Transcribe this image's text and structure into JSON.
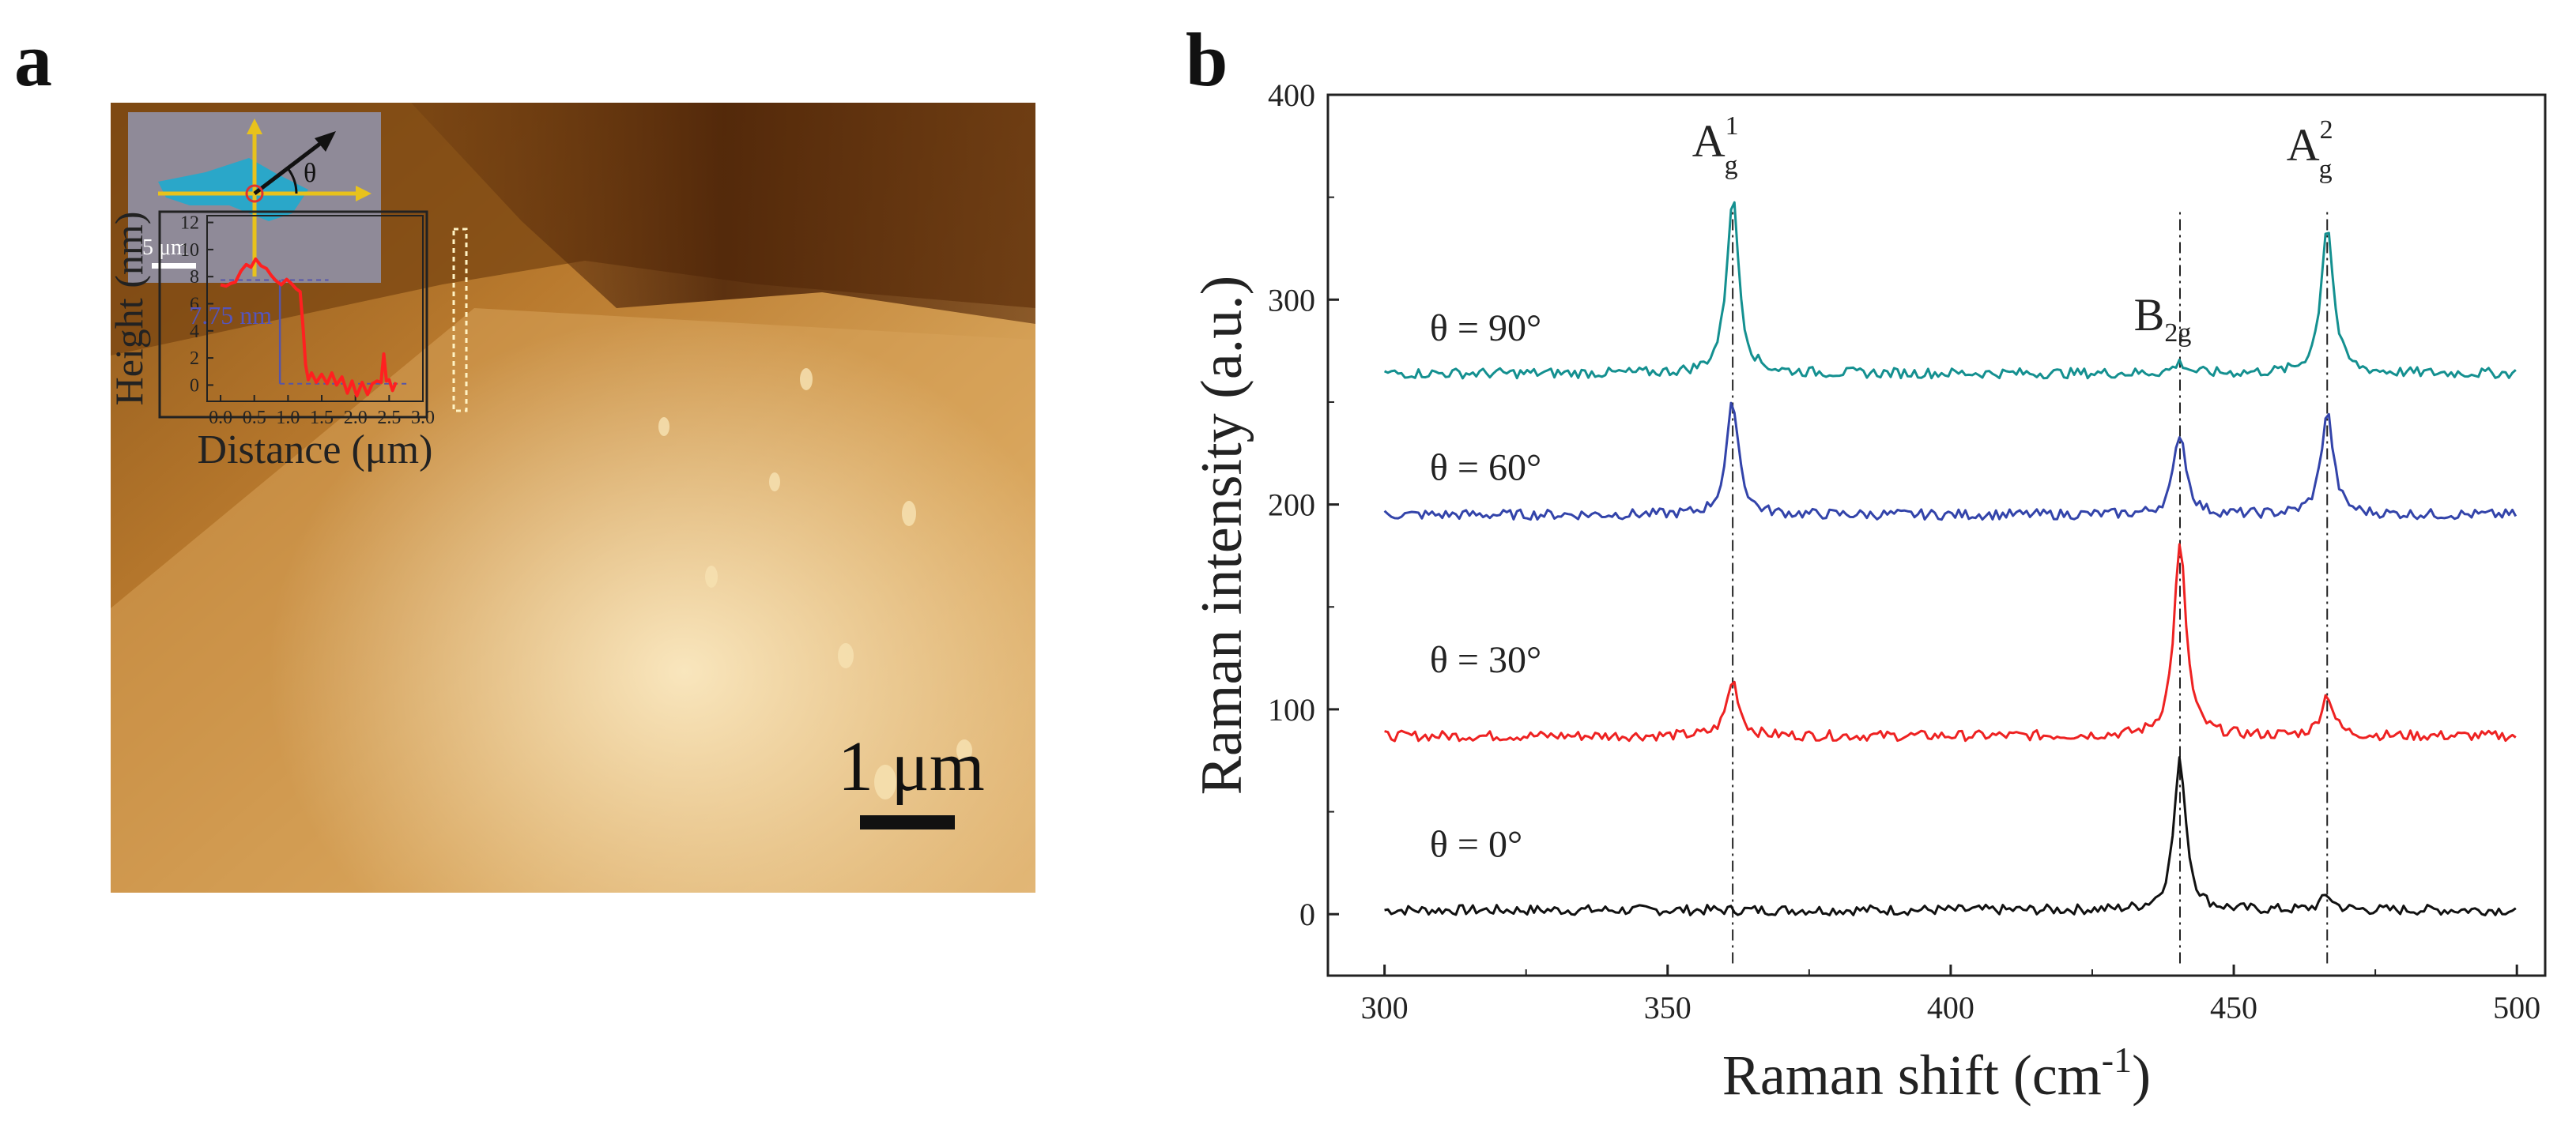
{
  "panel_a": {
    "label": "a",
    "inset_scale_label": "5 μm",
    "inset_angle_label": "θ",
    "scale_bar_label": "1 μm",
    "colors": {
      "afm_dark": "#6b3a12",
      "afm_mid": "#b8752e",
      "afm_light": "#f1d39b",
      "flake": "#2aa7c9",
      "arrow": "#e8c21c"
    }
  },
  "panel_b": {
    "label": "b"
  },
  "chart_data": [
    {
      "type": "line",
      "title": "",
      "xlabel": "Distance (μm)",
      "ylabel": "Height (nm)",
      "xlim": [
        -0.2,
        3.0
      ],
      "ylim": [
        -1.2,
        12.5
      ],
      "xticks": [
        0.0,
        0.5,
        1.0,
        1.5,
        2.0,
        2.5,
        3.0
      ],
      "yticks": [
        0,
        2,
        4,
        6,
        8,
        10,
        12
      ],
      "xtick_labels": [
        "0.0",
        "0.5",
        "1.0",
        "1.5",
        "2.0",
        "2.5",
        "3.0"
      ],
      "ytick_labels": [
        "0",
        "2",
        "4",
        "6",
        "8",
        "10",
        "12"
      ],
      "annotation": "7.75 nm",
      "step": {
        "x": 0.88,
        "y_high": 7.75,
        "y_low": 0.1
      },
      "series": [
        {
          "name": "height profile",
          "color": "#ff2020",
          "x": [
            0.0,
            0.08,
            0.15,
            0.22,
            0.3,
            0.38,
            0.45,
            0.52,
            0.6,
            0.68,
            0.75,
            0.82,
            0.9,
            0.98,
            1.05,
            1.12,
            1.18,
            1.22,
            1.26,
            1.3,
            1.35,
            1.42,
            1.5,
            1.58,
            1.65,
            1.72,
            1.8,
            1.88,
            1.95,
            2.02,
            2.1,
            2.18,
            2.25,
            2.32,
            2.38,
            2.42,
            2.46,
            2.5,
            2.55,
            2.6
          ],
          "y": [
            7.4,
            7.3,
            7.5,
            7.6,
            8.4,
            8.9,
            8.7,
            9.3,
            8.8,
            8.6,
            8.1,
            7.7,
            7.4,
            7.8,
            7.5,
            7.1,
            6.9,
            4.5,
            1.5,
            0.4,
            0.9,
            0.2,
            0.8,
            0.1,
            0.9,
            0.0,
            0.6,
            -0.6,
            0.3,
            -0.8,
            0.2,
            -0.7,
            0.1,
            0.3,
            0.2,
            2.3,
            0.3,
            0.4,
            -0.4,
            0.2
          ]
        }
      ]
    },
    {
      "type": "line",
      "title": "",
      "xlabel": "Raman shift (cm",
      "xlabel_sup": "-1",
      "xlabel_close": ")",
      "ylabel": "Raman intensity (a.u.)",
      "xlim": [
        290,
        505
      ],
      "ylim": [
        -30,
        400
      ],
      "xticks": [
        300,
        350,
        400,
        450,
        500
      ],
      "yticks": [
        0,
        100,
        200,
        300,
        400
      ],
      "xtick_labels": [
        "300",
        "350",
        "400",
        "450",
        "500"
      ],
      "ytick_labels": [
        "0",
        "100",
        "200",
        "300",
        "400"
      ],
      "peak_positions": [
        361.5,
        440.5,
        466.5
      ],
      "peak_labels": [
        {
          "main": "A",
          "sub": "g",
          "sup": "1",
          "x": 361.5,
          "y": 370
        },
        {
          "main": "B",
          "sub": "2g",
          "sup": "",
          "x": 440.5,
          "y": 285
        },
        {
          "main": "A",
          "sub": "g",
          "sup": "2",
          "x": 466.5,
          "y": 368
        }
      ],
      "series": [
        {
          "name": "θ = 0°",
          "color": "#111111",
          "baseline": 2,
          "peaks": [
            0,
            73,
            7
          ],
          "label_x": 308,
          "label_y": 28
        },
        {
          "name": "θ = 30°",
          "color": "#ee2222",
          "baseline": 87,
          "peaks": [
            27,
            93,
            20
          ],
          "label_x": 308,
          "label_y": 118
        },
        {
          "name": "θ = 60°",
          "color": "#3344aa",
          "baseline": 195,
          "peaks": [
            55,
            40,
            50
          ],
          "label_x": 308,
          "label_y": 212
        },
        {
          "name": "θ = 90°",
          "color": "#149090",
          "baseline": 264,
          "peaks": [
            86,
            5,
            73
          ],
          "label_x": 308,
          "label_y": 280
        }
      ]
    }
  ]
}
